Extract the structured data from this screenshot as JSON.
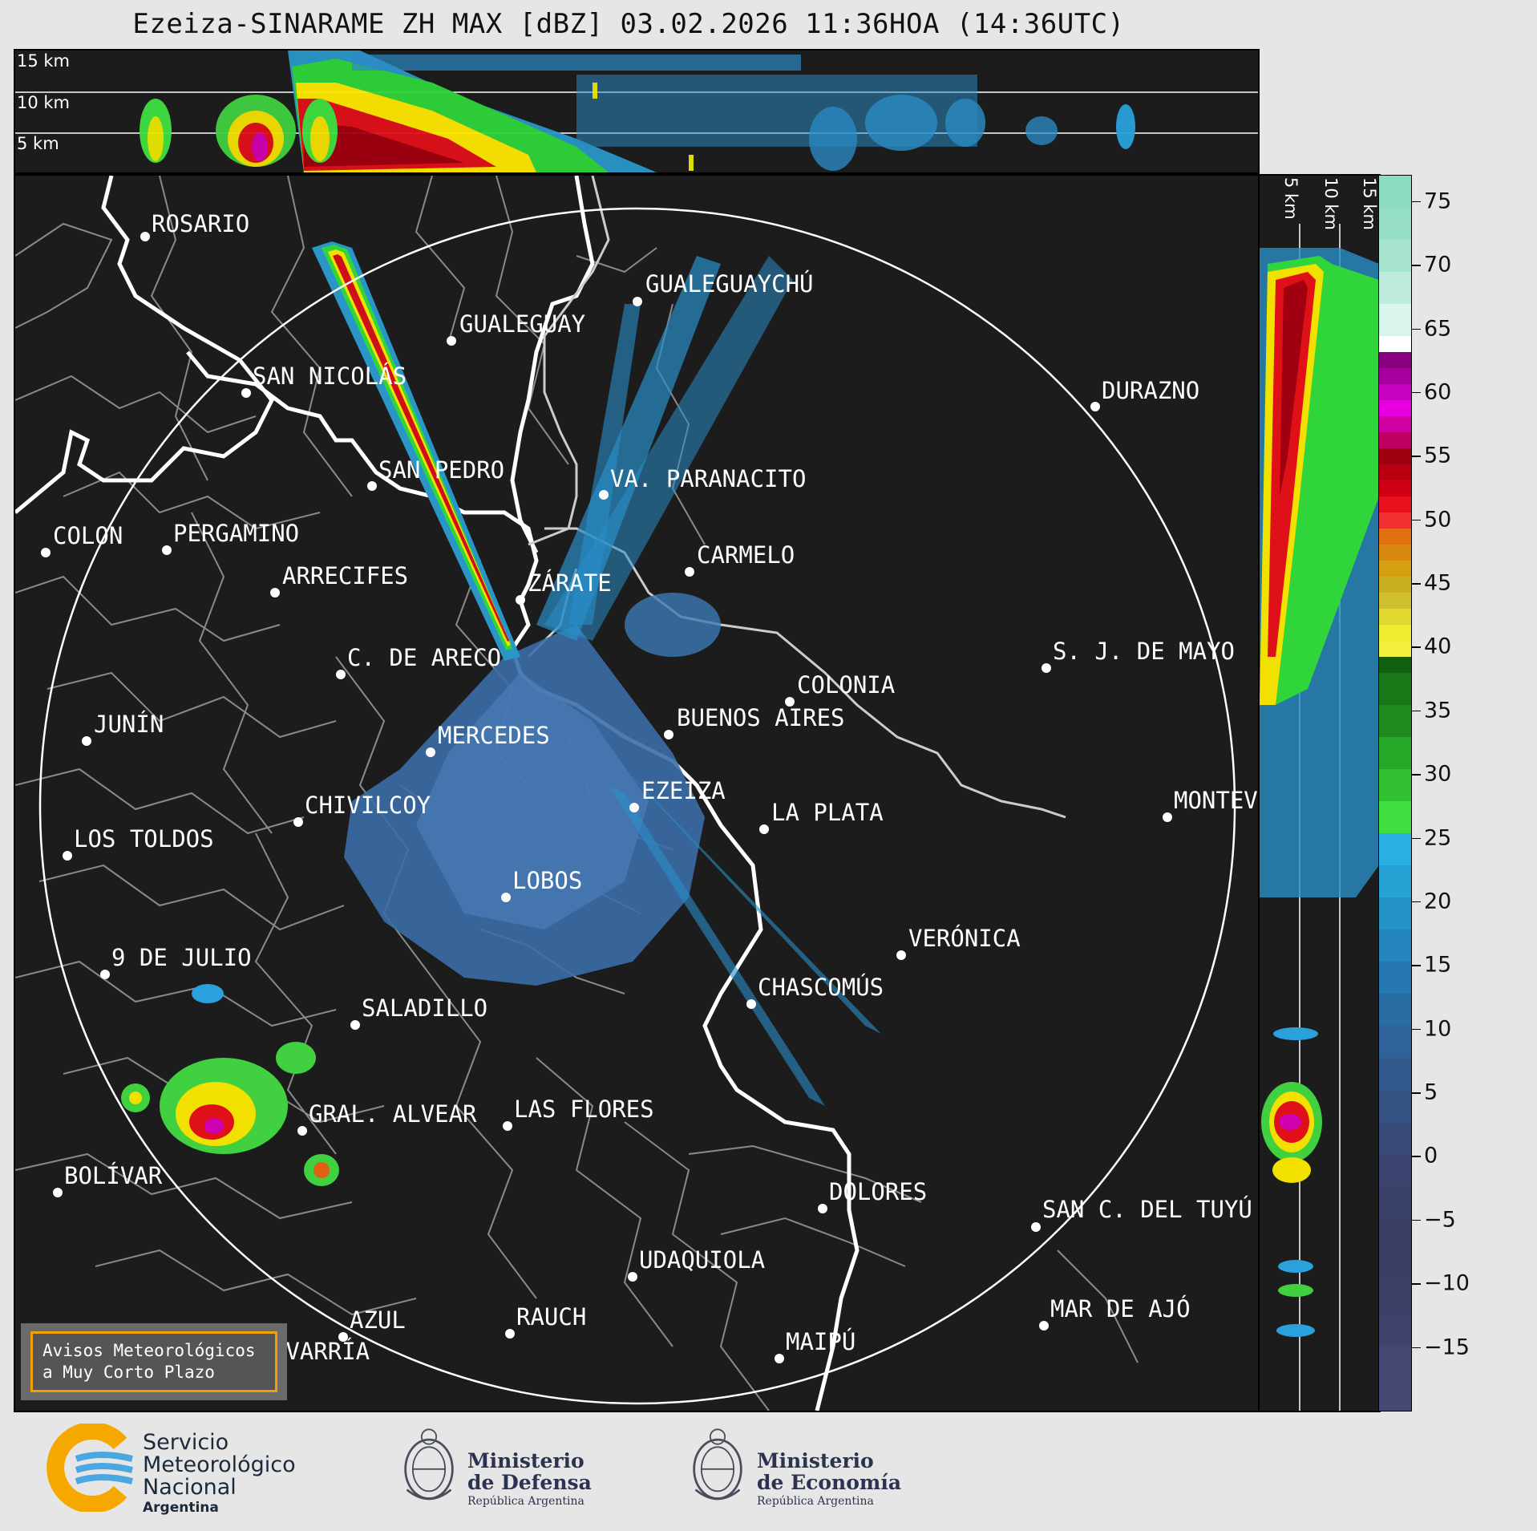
{
  "title": "Ezeiza-SINARAME ZH MAX [dBZ] 03.02.2026 11:36HOA (14:36UTC)",
  "altitude_labels_top": [
    "15 km",
    "10 km",
    "5 km"
  ],
  "altitude_labels_side": [
    "5 km",
    "10 km",
    "15 km"
  ],
  "cities": [
    "ROSARIO",
    "GUALEGUAYCHÚ",
    "GUALEGUAY",
    "SAN NICOLÁS",
    "DURAZNO",
    "SAN PEDRO",
    "VA. PARANACITO",
    "COLON",
    "PERGAMINO",
    "CARMELO",
    "ARRECIFES",
    "ZÁRATE",
    "C. DE ARECO",
    "S. J. DE MAYO",
    "COLONIA",
    "JUNÍN",
    "BUENOS AIRES",
    "MERCEDES",
    "EZEIZA",
    "MONTEV",
    "CHIVILCOY",
    "LA PLATA",
    "LOS TOLDOS",
    "LOBOS",
    "VERÓNICA",
    "9 DE JULIO",
    "CHASCOMÚS",
    "SALADILLO",
    "GRAL. ALVEAR",
    "LAS FLORES",
    "BOLÍVAR",
    "DOLORES",
    "SAN C. DEL TUYÚ",
    "UDAQUIOLA",
    "MAR DE AJÓ",
    "AZUL",
    "RAUCH",
    "OLAVARRÍA",
    "MAIPÚ"
  ],
  "colorbar": {
    "ticks": [
      "75",
      "70",
      "65",
      "60",
      "55",
      "50",
      "45",
      "40",
      "35",
      "30",
      "25",
      "20",
      "15",
      "10",
      "5",
      "0",
      "−5",
      "−10",
      "−15"
    ],
    "range": [
      -20,
      77
    ]
  },
  "avisos": {
    "line1": "Avisos Meteorológicos",
    "line2": "a Muy Corto Plazo"
  },
  "logos": {
    "smn_line1": "Servicio",
    "smn_line2": "Meteorológico",
    "smn_line3": "Nacional",
    "smn_sub": "Argentina",
    "defensa_line1": "Ministerio",
    "defensa_line2": "de Defensa",
    "defensa_sub": "República Argentina",
    "economia_line1": "Ministerio",
    "economia_line2": "de Economía",
    "economia_sub": "República Argentina"
  },
  "colors": {
    "panel_bg": "#1c1c1c",
    "river": "#ffffff",
    "boundary": "#8a8a8a",
    "range_ring": "#ffffff",
    "avisos_border": "#f0a000"
  }
}
